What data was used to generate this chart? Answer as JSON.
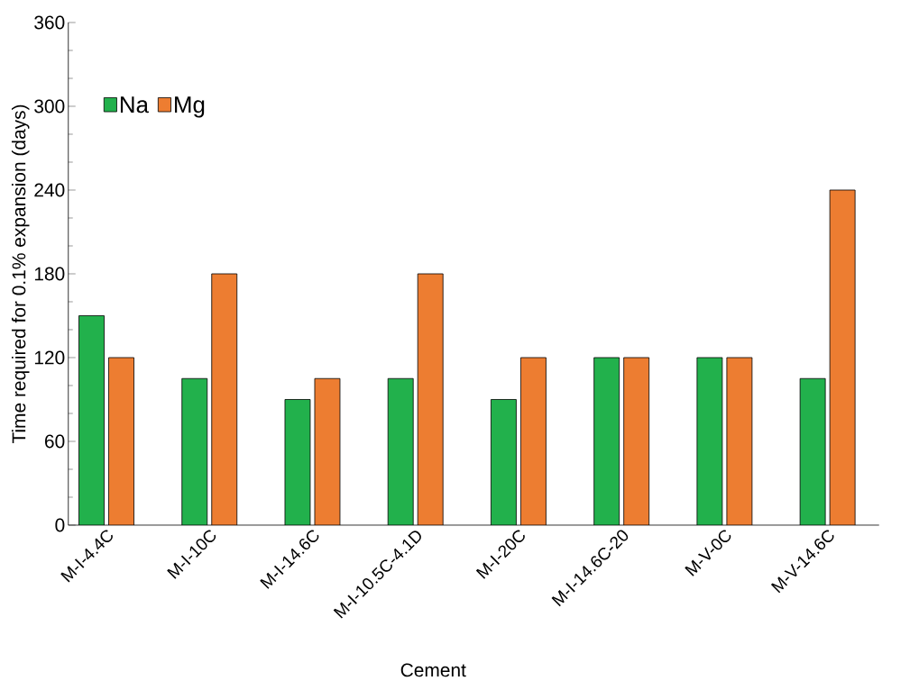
{
  "chart_data": {
    "type": "bar",
    "xlabel": "Cement",
    "ylabel": "Time required for 0.1% expansion (days)",
    "categories": [
      "M-I-4.4C",
      "M-I-10C",
      "M-I-14.6C",
      "M-I-10.5C-4.1D",
      "M-I-20C",
      "M-I-14.6C-20",
      "M-V-0C",
      "M-V-14.6C"
    ],
    "series": [
      {
        "name": "Na",
        "color": "#22b14c",
        "values": [
          150,
          105,
          90,
          105,
          90,
          120,
          120,
          105
        ]
      },
      {
        "name": "Mg",
        "color": "#ed7d31",
        "values": [
          120,
          180,
          105,
          180,
          120,
          120,
          120,
          240
        ]
      }
    ],
    "ylim": [
      0,
      360
    ],
    "yticks": [
      0,
      60,
      120,
      180,
      240,
      300,
      360
    ],
    "legend": "top left",
    "grid": false
  }
}
